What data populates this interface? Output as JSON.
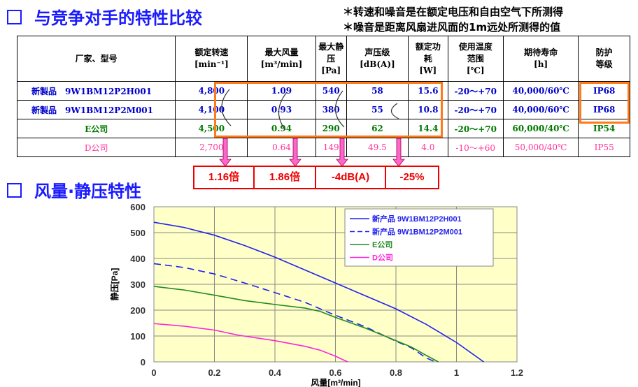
{
  "title": "与竞争对手的特性比较",
  "notes": [
    "＊转速和噪音是在额定电压和自由空气下所测得",
    "＊噪音是距离风扇进风面的1m远处所测得的值"
  ],
  "table": {
    "headers": [
      [
        "厂家、型号"
      ],
      [
        "额定转速",
        "[min⁻¹]"
      ],
      [
        "最大风量",
        "[m³/min]"
      ],
      [
        "最大静",
        "压",
        "[Pa]"
      ],
      [
        "声压级",
        "[dB(A)]"
      ],
      [
        "额定功",
        "耗",
        "[W]"
      ],
      [
        "使用温度",
        "范围",
        "[℃]"
      ],
      [
        "期待寿命",
        "[h]"
      ],
      [
        "防护",
        "等级"
      ]
    ],
    "rows": [
      {
        "color": "blue",
        "cells": [
          "新製品　9W1BM12P2H001",
          "4,800",
          "1.09",
          "540",
          "58",
          "15.6",
          "-20～+70",
          "40,000/60℃",
          "IP68"
        ]
      },
      {
        "color": "blue",
        "cells": [
          "新製品　9W1BM12P2M001",
          "4,100",
          "0.93",
          "380",
          "55",
          "10.8",
          "-20～+70",
          "40,000/60℃",
          "IP68"
        ]
      },
      {
        "color": "green",
        "cells": [
          "E公司",
          "4,500",
          "0.94",
          "290",
          "62",
          "14.4",
          "-20～+70",
          "60,000/40℃",
          "IP54"
        ]
      },
      {
        "color": "pink",
        "cells": [
          "D公司",
          "2,700",
          "0.64",
          "149",
          "49.5",
          "4.0",
          "-10～+60",
          "50,000/40℃",
          "IP55"
        ]
      }
    ]
  },
  "comparison": [
    "1.16倍",
    "1.86倍",
    "-4dB(A)",
    "-25%"
  ],
  "section2": "风量·静压特性",
  "chart_data": {
    "type": "line",
    "xlabel": "风量[m³/min]",
    "ylabel": "静压[Pa]",
    "xlim": [
      0,
      1.2
    ],
    "ylim": [
      0,
      600
    ],
    "xticks": [
      "0",
      "0.2",
      "0.4",
      "0.6",
      "0.8",
      "1",
      "1.2"
    ],
    "yticks": [
      "0",
      "100",
      "200",
      "300",
      "400",
      "500",
      "600"
    ],
    "grid": true,
    "legend": "top-right",
    "background": "#ffffc8",
    "series": [
      {
        "name": "新产品 9W1BM12P2H001",
        "color": "#2222ee",
        "dash": false,
        "x": [
          0,
          0.1,
          0.2,
          0.3,
          0.4,
          0.5,
          0.6,
          0.7,
          0.8,
          0.9,
          1.0,
          1.09
        ],
        "y": [
          540,
          520,
          490,
          450,
          405,
          355,
          305,
          255,
          205,
          145,
          75,
          0
        ]
      },
      {
        "name": "新产品 9W1BM12P2M001",
        "color": "#2222ee",
        "dash": true,
        "x": [
          0,
          0.1,
          0.2,
          0.3,
          0.4,
          0.5,
          0.6,
          0.7,
          0.8,
          0.85,
          0.9,
          0.93
        ],
        "y": [
          380,
          365,
          340,
          305,
          268,
          230,
          180,
          135,
          80,
          55,
          15,
          0
        ]
      },
      {
        "name": "E公司",
        "color": "#228b22",
        "dash": false,
        "x": [
          0,
          0.1,
          0.2,
          0.3,
          0.4,
          0.5,
          0.55,
          0.6,
          0.7,
          0.8,
          0.85,
          0.9,
          0.94
        ],
        "y": [
          292,
          278,
          258,
          237,
          222,
          208,
          195,
          172,
          130,
          82,
          58,
          25,
          0
        ]
      },
      {
        "name": "D公司",
        "color": "#ff22dd",
        "dash": false,
        "x": [
          0,
          0.1,
          0.2,
          0.28,
          0.4,
          0.5,
          0.55,
          0.6,
          0.64
        ],
        "y": [
          148,
          138,
          123,
          103,
          82,
          60,
          45,
          22,
          0
        ]
      }
    ]
  }
}
